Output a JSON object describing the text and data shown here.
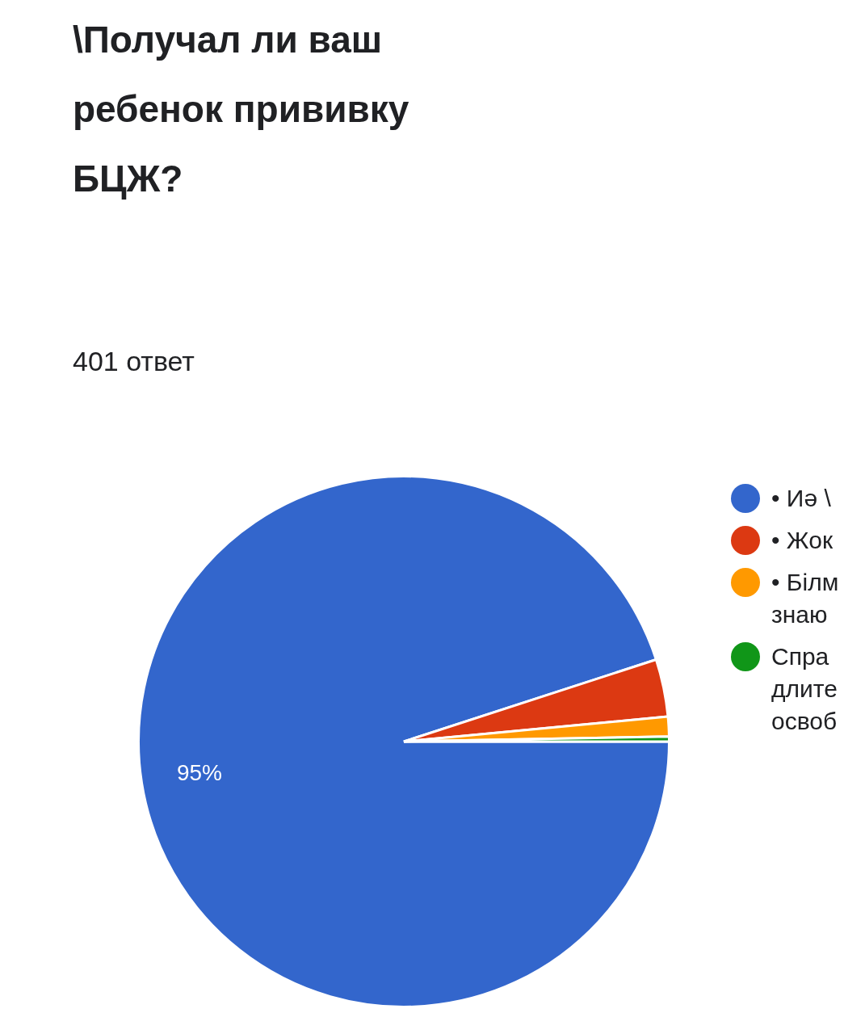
{
  "chart_data": {
    "type": "pie",
    "title": "\\Получал ли ваш ребенок прививку БЦЖ?",
    "subtitle": "401 ответ",
    "categories": [
      "• Иә \\",
      "• Жок",
      "• Білм\nзнаю",
      "Спра\nдлите\nосвоб"
    ],
    "values": [
      95,
      3.5,
      1.2,
      0.3
    ],
    "colors": [
      "#3366cc",
      "#dc3912",
      "#ff9900",
      "#109618"
    ],
    "value_labels": [
      "95%",
      null,
      null,
      null
    ],
    "legend": "right"
  }
}
